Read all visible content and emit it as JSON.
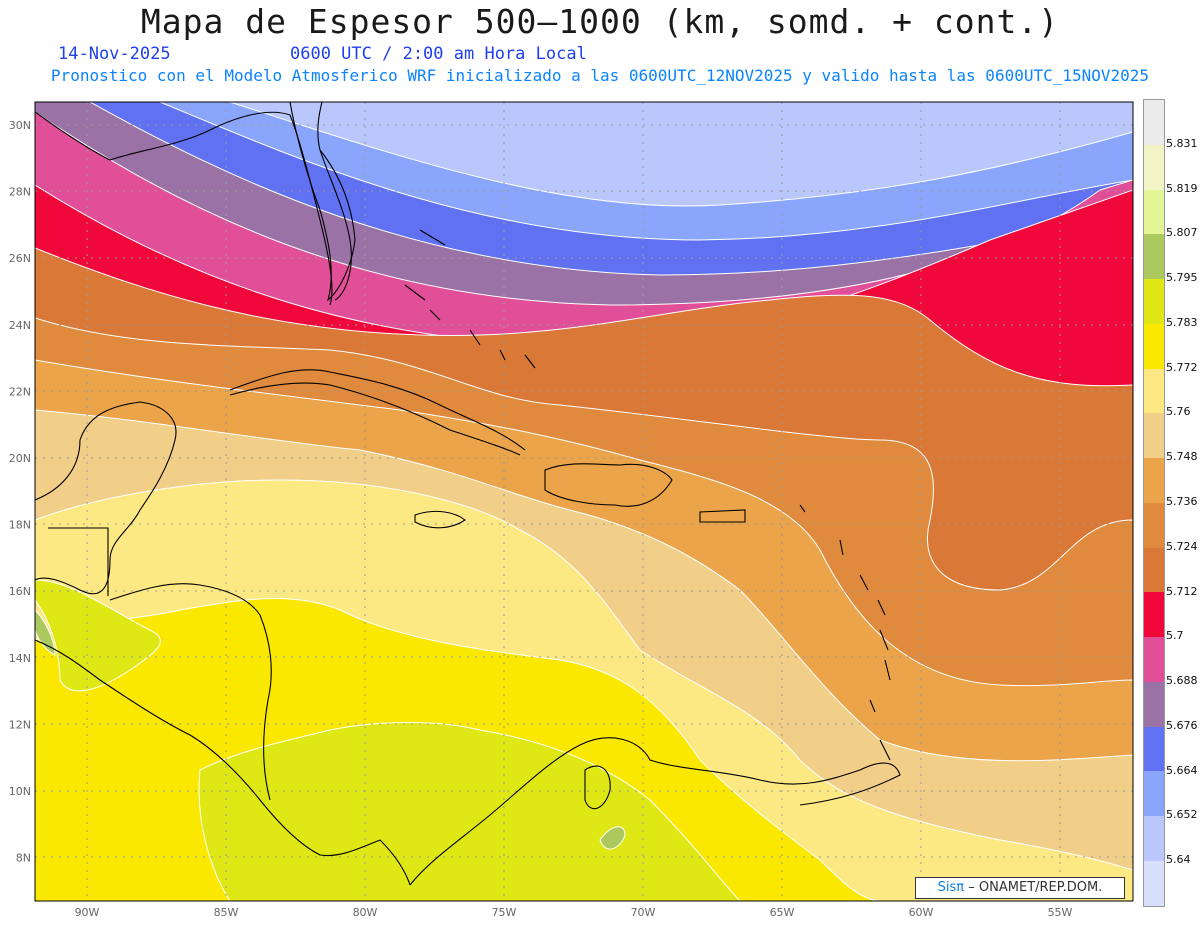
{
  "header": {
    "title": "Mapa de Espesor 500–1000 (km, somd. + cont.)",
    "date": "14-Nov-2025",
    "time": "0600 UTC / 2:00 am Hora Local",
    "subtitle": "Pronostico con el Modelo Atmosferico WRF inicializado a las 0600UTC_12NOV2025 y valido hasta las  0600UTC_15NOV2025"
  },
  "map": {
    "lat_labels": [
      "30N",
      "28N",
      "26N",
      "24N",
      "22N",
      "20N",
      "18N",
      "16N",
      "14N",
      "12N",
      "10N",
      "8N"
    ],
    "lon_labels": [
      "90W",
      "85W",
      "80W",
      "75W",
      "70W",
      "65W",
      "60W",
      "55W"
    ],
    "lat_range": [
      6.7,
      30.7
    ],
    "lon_range": [
      -92,
      -52.5
    ]
  },
  "colorbar": {
    "labels": [
      "5.831",
      "5.819",
      "5.807",
      "5.795",
      "5.783",
      "5.772",
      "5.76",
      "5.748",
      "5.736",
      "5.724",
      "5.712",
      "5.7",
      "5.688",
      "5.676",
      "5.664",
      "5.652",
      "5.64"
    ],
    "colors": [
      "#ebebeb",
      "#f2f4c8",
      "#e2f494",
      "#abc95e",
      "#dfe814",
      "#fae800",
      "#fde984",
      "#f2cf88",
      "#eba449",
      "#e08a3e",
      "#d97837",
      "#f0083a",
      "#e24f99",
      "#9a72a6",
      "#6072f1",
      "#8aa6fc",
      "#b9c7fc",
      "#d7dffb"
    ]
  },
  "credit": {
    "brand": "Sisπ",
    "text": "– ONAMET/REP.DOM."
  }
}
